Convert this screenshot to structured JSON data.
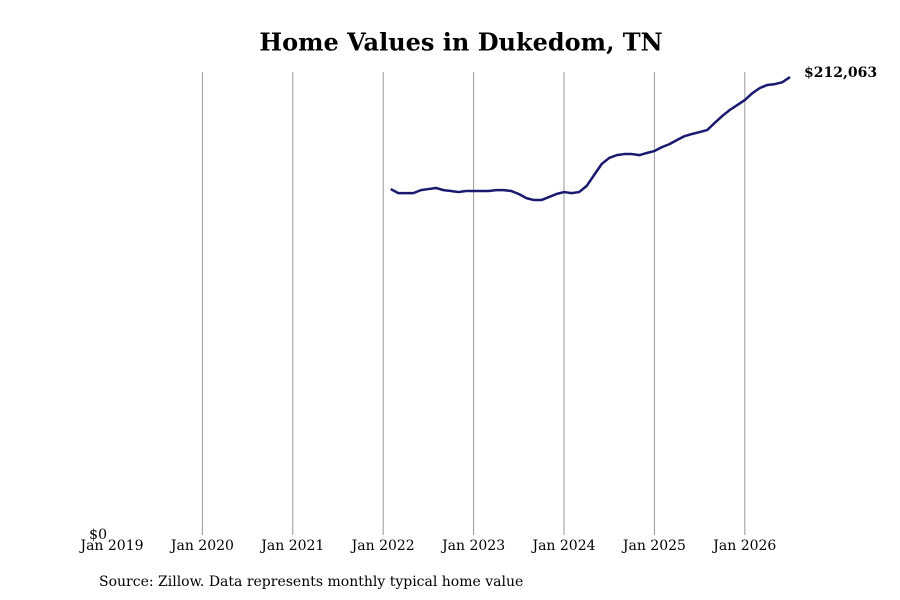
{
  "chart_data": {
    "type": "line",
    "title": "Home Values in Dukedom, TN",
    "source": "Source: Zillow. Data represents monthly typical home value",
    "x": [
      "2022-02",
      "2022-03",
      "2022-04",
      "2022-05",
      "2022-06",
      "2022-07",
      "2022-08",
      "2022-09",
      "2022-10",
      "2022-11",
      "2022-12",
      "2023-01",
      "2023-02",
      "2023-03",
      "2023-04",
      "2023-05",
      "2023-06",
      "2023-07",
      "2023-08",
      "2023-09",
      "2023-10",
      "2023-11",
      "2023-12",
      "2024-01",
      "2024-02",
      "2024-03",
      "2024-04",
      "2024-05",
      "2024-06",
      "2024-07",
      "2024-08",
      "2024-09",
      "2024-10",
      "2024-11",
      "2024-12",
      "2025-01",
      "2025-02",
      "2025-03",
      "2025-04",
      "2025-05",
      "2025-06",
      "2025-07",
      "2025-08",
      "2025-09",
      "2025-10",
      "2025-11",
      "2025-12",
      "2026-01",
      "2026-02",
      "2026-03",
      "2026-04",
      "2026-05",
      "2026-06",
      "2026-07"
    ],
    "series": [
      {
        "name": "Dukedom, TN",
        "color": "#191970",
        "values": [
          160200,
          158300,
          158300,
          158300,
          159700,
          160200,
          160700,
          159700,
          159300,
          158800,
          159300,
          159300,
          159300,
          159300,
          159700,
          159700,
          159300,
          157900,
          156000,
          155100,
          155100,
          156500,
          157900,
          158800,
          158300,
          158800,
          161600,
          166700,
          171800,
          174600,
          175900,
          176400,
          176400,
          175900,
          176900,
          177800,
          179600,
          181000,
          182900,
          184700,
          185700,
          186600,
          187500,
          190800,
          194000,
          196800,
          199100,
          201400,
          204600,
          207000,
          208400,
          208800,
          209700,
          212063
        ],
        "value_labels": {
          "53": "$212,063"
        }
      }
    ],
    "xlim": [
      "2019-01",
      "2026-07"
    ],
    "xticks": [
      {
        "value": "2019-01",
        "label": "Jan 2019"
      },
      {
        "value": "2020-01",
        "label": "Jan 2020"
      },
      {
        "value": "2021-01",
        "label": "Jan 2021"
      },
      {
        "value": "2022-01",
        "label": "Jan 2022"
      },
      {
        "value": "2023-01",
        "label": "Jan 2023"
      },
      {
        "value": "2024-01",
        "label": "Jan 2024"
      },
      {
        "value": "2025-01",
        "label": "Jan 2025"
      },
      {
        "value": "2026-01",
        "label": "Jan 2026"
      }
    ],
    "ylim": [
      0,
      214400
    ],
    "yticks": [
      {
        "value": 0,
        "label": "$0"
      }
    ],
    "grid": true
  }
}
